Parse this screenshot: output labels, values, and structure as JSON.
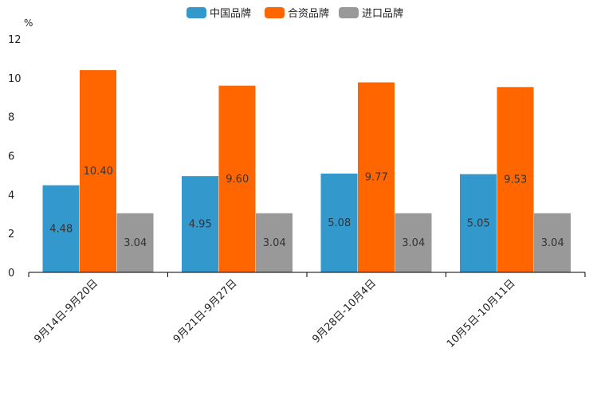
{
  "chart_data": {
    "type": "bar",
    "title": "",
    "ylabel": "%",
    "xlabel": "",
    "ylim": [
      0,
      12
    ],
    "yticks": [
      0,
      2,
      4,
      6,
      8,
      10,
      12
    ],
    "legend_position": "top-center",
    "categories": [
      "9月14日-9月20日",
      "9月21日-9月27日",
      "9月28日-10月4日",
      "10月5日-10月11日"
    ],
    "series": [
      {
        "name": "中国品牌",
        "color": "#3399cc",
        "values": [
          4.48,
          4.95,
          5.08,
          5.05
        ],
        "labels": [
          "4.48",
          "4.95",
          "5.08",
          "5.05"
        ]
      },
      {
        "name": "合资品牌",
        "color": "#ff6600",
        "values": [
          10.4,
          9.6,
          9.77,
          9.53
        ],
        "labels": [
          "10.40",
          "9.60",
          "9.77",
          "9.53"
        ]
      },
      {
        "name": "进口品牌",
        "color": "#999999",
        "values": [
          3.04,
          3.04,
          3.04,
          3.04
        ],
        "labels": [
          "3.04",
          "3.04",
          "3.04",
          "3.04"
        ]
      }
    ]
  }
}
